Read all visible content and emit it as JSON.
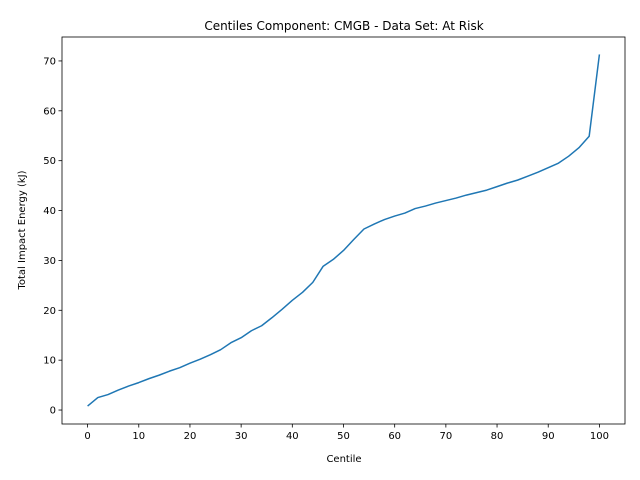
{
  "chart_data": {
    "type": "line",
    "title": "Centiles Component: CMGB - Data Set: At Risk",
    "xlabel": "Centile",
    "ylabel": "Total Impact Energy (kJ)",
    "xlim": [
      -5,
      105
    ],
    "ylim": [
      -2.8,
      74.8
    ],
    "xticks": [
      0,
      10,
      20,
      30,
      40,
      50,
      60,
      70,
      80,
      90,
      100
    ],
    "yticks": [
      0,
      10,
      20,
      30,
      40,
      50,
      60,
      70
    ],
    "grid": false,
    "series": [
      {
        "color": "#1f77b4",
        "x": [
          0,
          2,
          4,
          6,
          8,
          10,
          12,
          14,
          16,
          18,
          20,
          22,
          24,
          26,
          28,
          30,
          32,
          34,
          36,
          38,
          40,
          42,
          44,
          46,
          48,
          50,
          52,
          54,
          56,
          58,
          60,
          62,
          64,
          66,
          68,
          70,
          72,
          74,
          76,
          78,
          80,
          82,
          84,
          86,
          88,
          90,
          92,
          94,
          96,
          98,
          100
        ],
        "values": [
          0.8,
          2.5,
          3.1,
          4.0,
          4.8,
          5.5,
          6.3,
          7.0,
          7.8,
          8.5,
          9.4,
          10.2,
          11.1,
          12.1,
          13.5,
          14.5,
          15.9,
          16.9,
          18.5,
          20.2,
          22.0,
          23.6,
          25.6,
          28.8,
          30.2,
          32.0,
          34.2,
          36.3,
          37.3,
          38.2,
          38.9,
          39.5,
          40.4,
          40.9,
          41.5,
          42.0,
          42.5,
          43.1,
          43.6,
          44.1,
          44.8,
          45.5,
          46.1,
          46.9,
          47.7,
          48.6,
          49.5,
          50.9,
          52.6,
          54.9,
          71.3
        ]
      }
    ]
  }
}
